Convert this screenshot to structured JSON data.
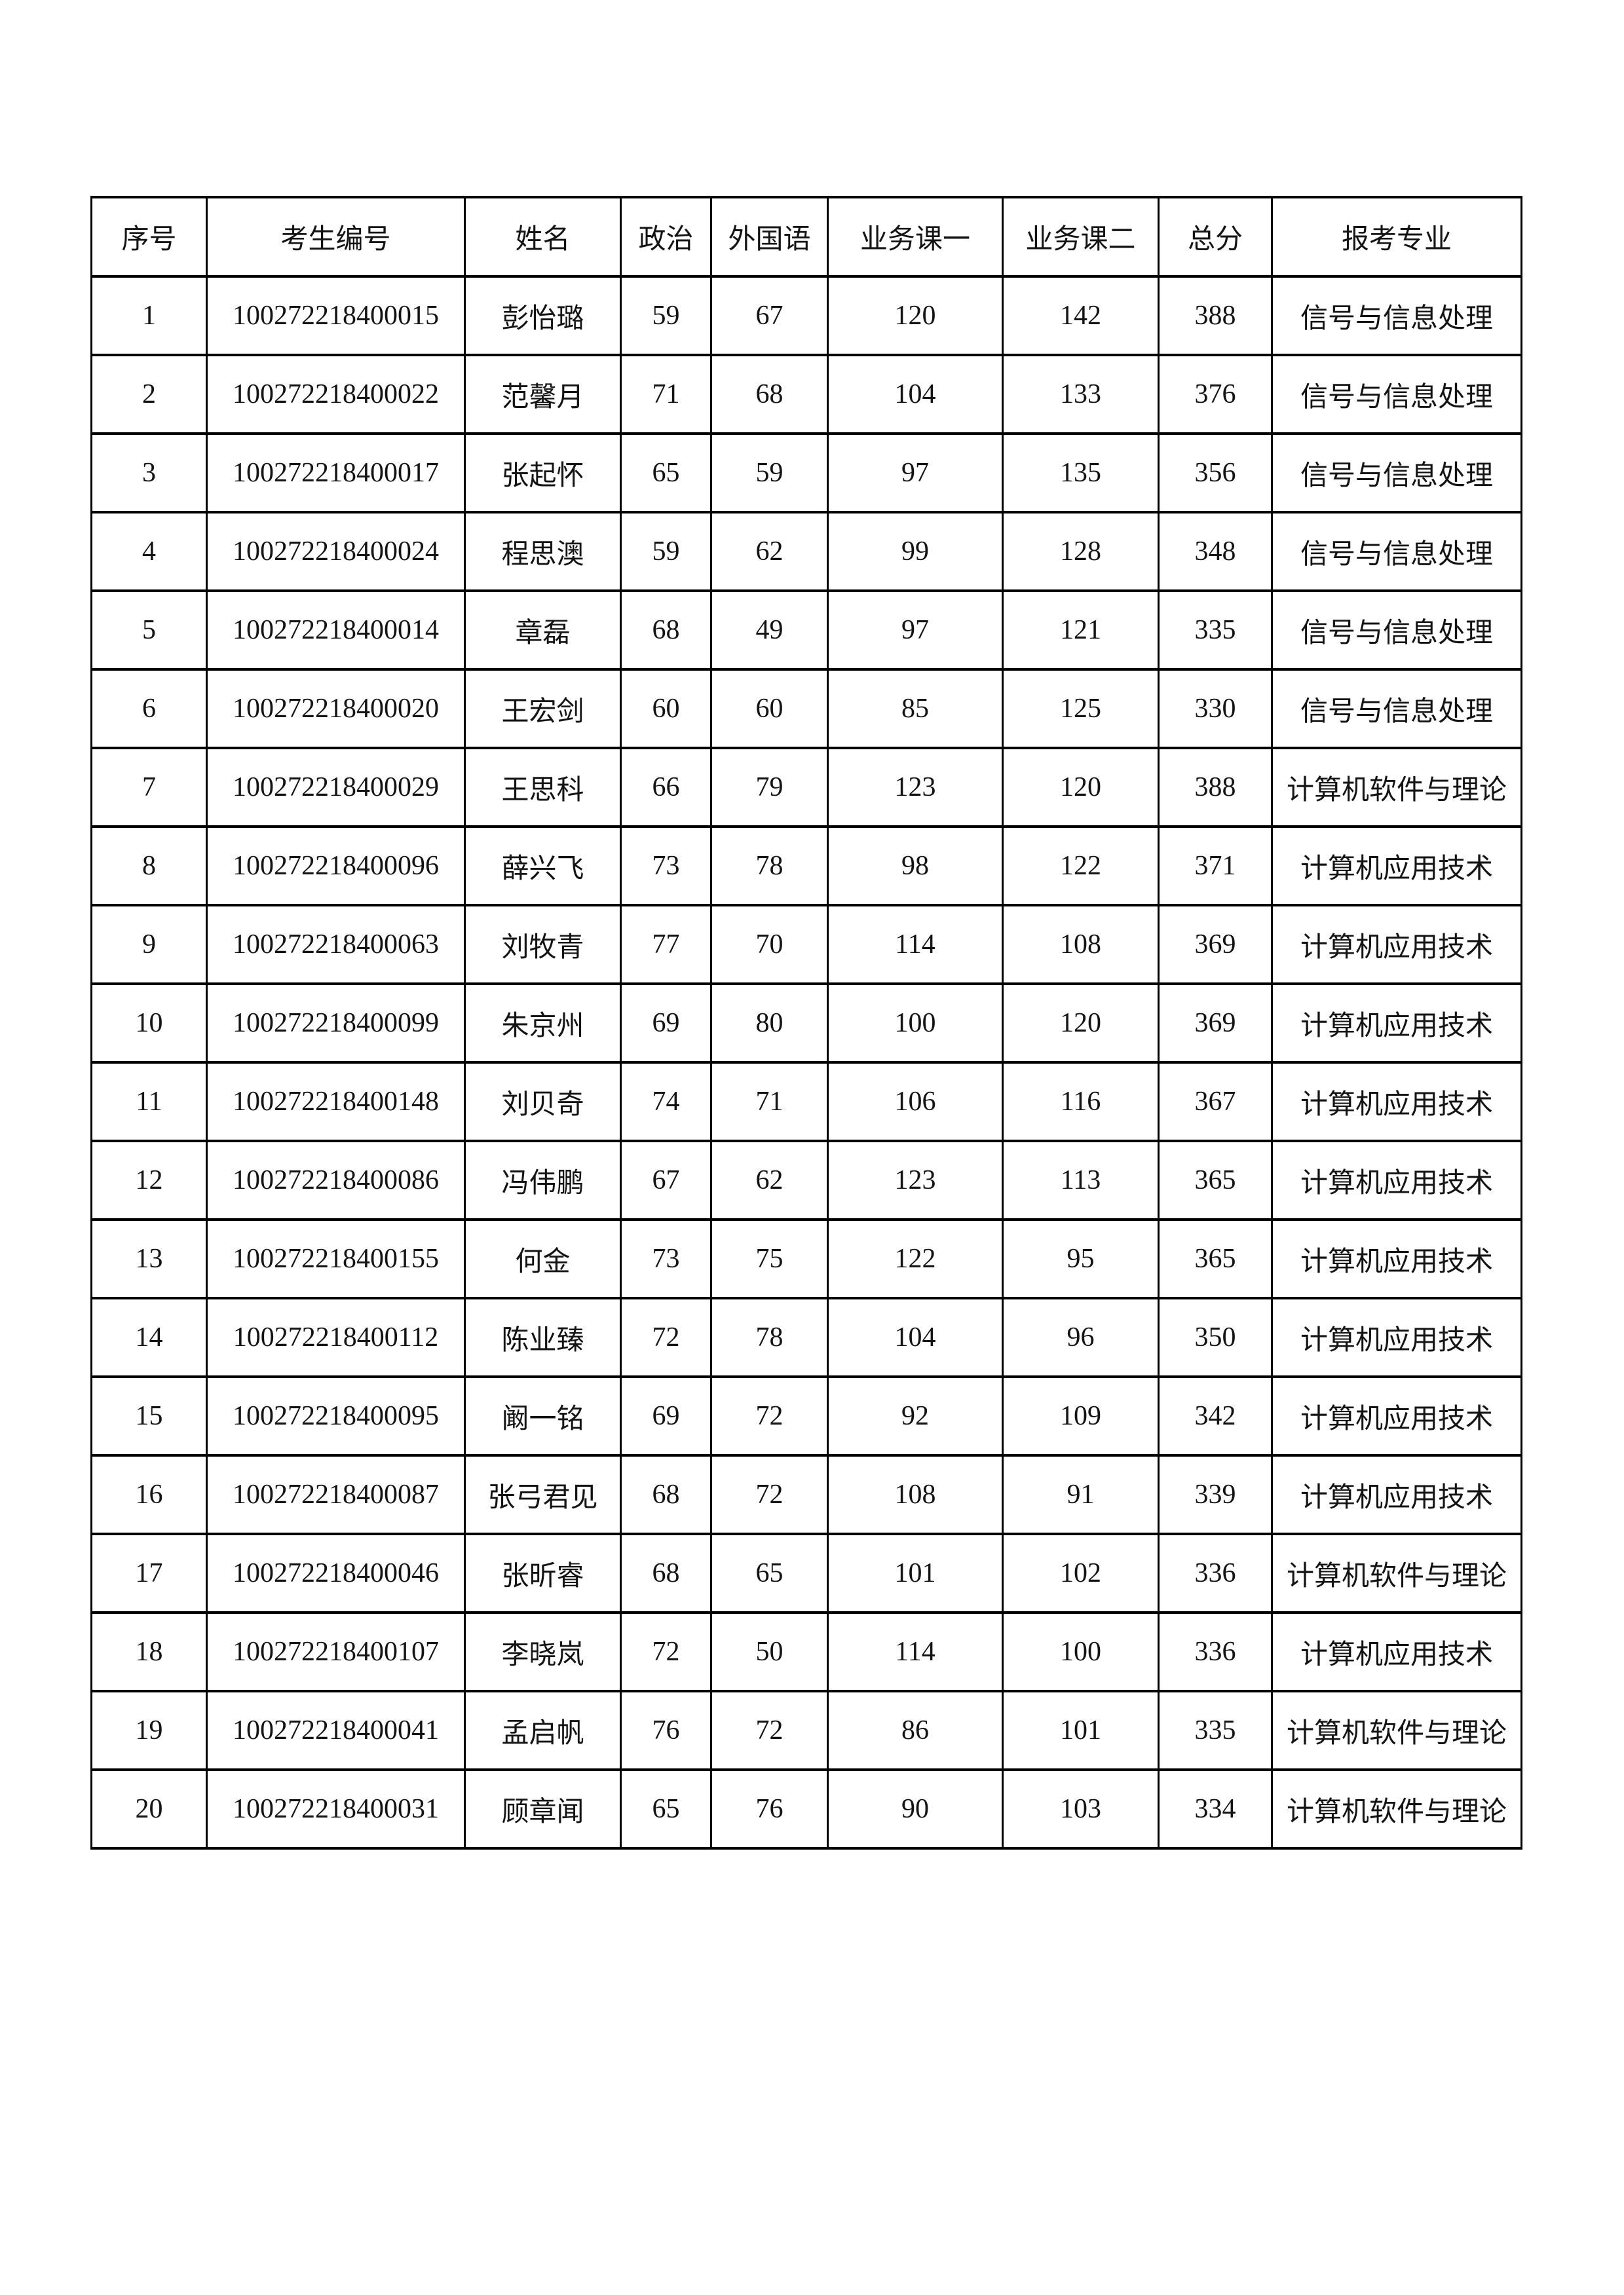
{
  "colors": {
    "border": "#000000",
    "text": "#141414",
    "page_background": "#ffffff"
  },
  "table": {
    "headers": [
      "序号",
      "考生编号",
      "姓名",
      "政治",
      "外国语",
      "业务课一",
      "业务课二",
      "总分",
      "报考专业"
    ],
    "rows": [
      [
        "1",
        "100272218400015",
        "彭怡璐",
        "59",
        "67",
        "120",
        "142",
        "388",
        "信号与信息处理"
      ],
      [
        "2",
        "100272218400022",
        "范馨月",
        "71",
        "68",
        "104",
        "133",
        "376",
        "信号与信息处理"
      ],
      [
        "3",
        "100272218400017",
        "张起怀",
        "65",
        "59",
        "97",
        "135",
        "356",
        "信号与信息处理"
      ],
      [
        "4",
        "100272218400024",
        "程思澳",
        "59",
        "62",
        "99",
        "128",
        "348",
        "信号与信息处理"
      ],
      [
        "5",
        "100272218400014",
        "章磊",
        "68",
        "49",
        "97",
        "121",
        "335",
        "信号与信息处理"
      ],
      [
        "6",
        "100272218400020",
        "王宏剑",
        "60",
        "60",
        "85",
        "125",
        "330",
        "信号与信息处理"
      ],
      [
        "7",
        "100272218400029",
        "王思科",
        "66",
        "79",
        "123",
        "120",
        "388",
        "计算机软件与理论"
      ],
      [
        "8",
        "100272218400096",
        "薛兴飞",
        "73",
        "78",
        "98",
        "122",
        "371",
        "计算机应用技术"
      ],
      [
        "9",
        "100272218400063",
        "刘牧青",
        "77",
        "70",
        "114",
        "108",
        "369",
        "计算机应用技术"
      ],
      [
        "10",
        "100272218400099",
        "朱京州",
        "69",
        "80",
        "100",
        "120",
        "369",
        "计算机应用技术"
      ],
      [
        "11",
        "100272218400148",
        "刘贝奇",
        "74",
        "71",
        "106",
        "116",
        "367",
        "计算机应用技术"
      ],
      [
        "12",
        "100272218400086",
        "冯伟鹏",
        "67",
        "62",
        "123",
        "113",
        "365",
        "计算机应用技术"
      ],
      [
        "13",
        "100272218400155",
        "何金",
        "73",
        "75",
        "122",
        "95",
        "365",
        "计算机应用技术"
      ],
      [
        "14",
        "100272218400112",
        "陈业臻",
        "72",
        "78",
        "104",
        "96",
        "350",
        "计算机应用技术"
      ],
      [
        "15",
        "100272218400095",
        "阚一铭",
        "69",
        "72",
        "92",
        "109",
        "342",
        "计算机应用技术"
      ],
      [
        "16",
        "100272218400087",
        "张弓君见",
        "68",
        "72",
        "108",
        "91",
        "339",
        "计算机应用技术"
      ],
      [
        "17",
        "100272218400046",
        "张昕睿",
        "68",
        "65",
        "101",
        "102",
        "336",
        "计算机软件与理论"
      ],
      [
        "18",
        "100272218400107",
        "李晓岚",
        "72",
        "50",
        "114",
        "100",
        "336",
        "计算机应用技术"
      ],
      [
        "19",
        "100272218400041",
        "孟启帆",
        "76",
        "72",
        "86",
        "101",
        "335",
        "计算机软件与理论"
      ],
      [
        "20",
        "100272218400031",
        "顾章闻",
        "65",
        "76",
        "90",
        "103",
        "334",
        "计算机软件与理论"
      ]
    ]
  }
}
